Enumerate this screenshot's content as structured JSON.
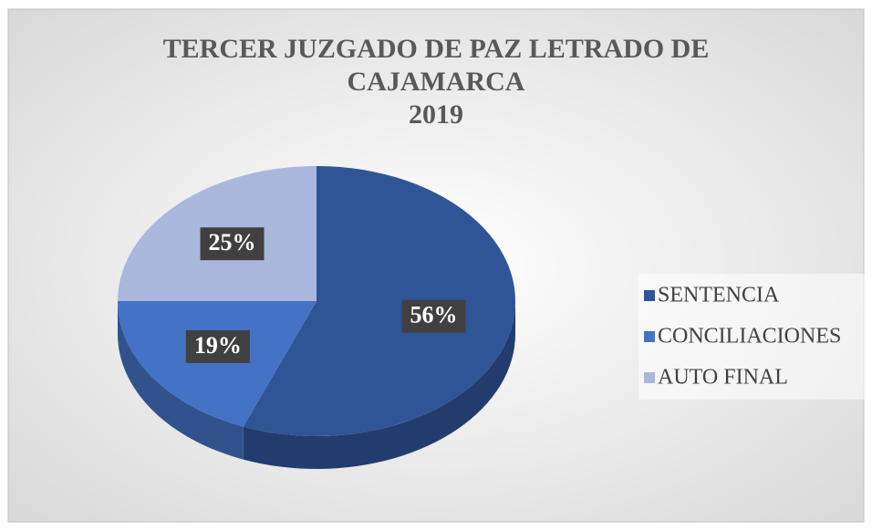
{
  "chart_data": {
    "type": "pie3d",
    "title": "TERCER JUZGADO DE PAZ LETRADO DE CAJAMARCA",
    "subtitle": "2019",
    "categories": [
      "SENTENCIA",
      "CONCILIACIONES",
      "AUTO FINAL"
    ],
    "values": [
      56,
      19,
      25
    ],
    "value_labels": [
      "56%",
      "19%",
      "25%"
    ],
    "colors": [
      "#2f5597",
      "#4472c4",
      "#a9b8dc"
    ],
    "legend": "right"
  }
}
